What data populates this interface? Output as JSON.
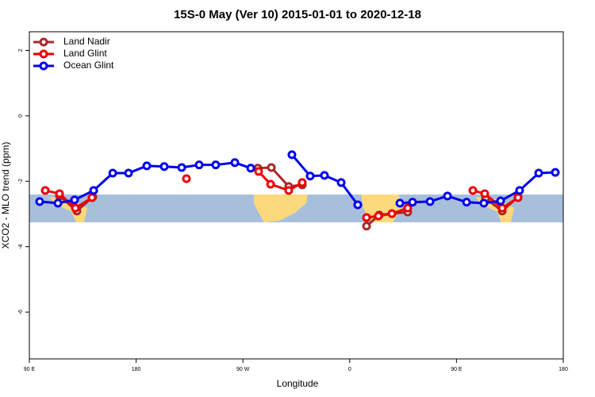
{
  "chart_data": {
    "type": "line",
    "title": "15S-0 May (Ver 10)   2015-01-01 to 2020-12-18",
    "xlabel": "Longitude",
    "ylabel": "XCO2 - MLO trend (ppm)",
    "xlim": [
      90,
      540
    ],
    "ylim": [
      -7.43,
      2.57
    ],
    "xticks": [
      {
        "value": 90,
        "label": "90 E"
      },
      180,
      {
        "value": 270,
        "label": "90 W"
      },
      {
        "value": 360,
        "label": "0"
      },
      {
        "value": 450,
        "label": "90 E"
      },
      {
        "value": 540,
        "label": "180"
      }
    ],
    "yticks": [
      2,
      0,
      -2,
      -4,
      -6
    ],
    "legend": "top-left",
    "series": [
      {
        "name": "Land Nadir",
        "color": "#a52a2a",
        "x": [
          115.4,
          130.1,
          143.5,
          null,
          282.6,
          294,
          308.6,
          320,
          null,
          374.2,
          384.9,
          395.6,
          408.9,
          null,
          474.5,
          488.5,
          501.9
        ],
        "values": [
          -2.45,
          -2.91,
          -2.48,
          null,
          -1.6,
          -1.58,
          -2.16,
          -2.11,
          null,
          -3.37,
          -3.03,
          -2.99,
          -2.94,
          null,
          -2.52,
          -2.91,
          -2.48
        ]
      },
      {
        "name": "Land Glint",
        "color": "#ee0000",
        "x": [
          103.4,
          115.4,
          128.8,
          142.8,
          null,
          222.4,
          null,
          283.2,
          293.3,
          308.6,
          320,
          null,
          374.2,
          384.2,
          395.6,
          408.9,
          null,
          463.8,
          473.8,
          488.5,
          501.9
        ],
        "values": [
          -2.28,
          -2.38,
          -2.82,
          -2.5,
          null,
          -1.92,
          null,
          -1.7,
          -2.09,
          -2.28,
          -2.04,
          null,
          -3.11,
          -3.06,
          -2.99,
          -2.82,
          null,
          -2.28,
          -2.38,
          -2.82,
          -2.5
        ]
      },
      {
        "name": "Ocean Glint",
        "color": "#0000ee",
        "x": [
          98.7,
          114.1,
          128.1,
          144.2,
          160.3,
          173.6,
          189,
          203.7,
          218.4,
          233.1,
          247.1,
          263.2,
          276.6,
          null,
          311.3,
          326.7,
          338.7,
          352.8,
          366.8,
          null,
          402.3,
          413,
          427.7,
          442.4,
          458.5,
          473.1,
          487.2,
          503.2,
          519.3,
          533.3
        ],
        "values": [
          -2.62,
          -2.67,
          -2.57,
          -2.28,
          -1.75,
          -1.75,
          -1.53,
          -1.55,
          -1.58,
          -1.5,
          -1.5,
          -1.43,
          -1.6,
          null,
          -1.19,
          -1.84,
          -1.82,
          -2.04,
          -2.72,
          null,
          -2.67,
          -2.64,
          -2.62,
          -2.45,
          -2.64,
          -2.67,
          -2.6,
          -2.28,
          -1.75,
          -1.73
        ]
      }
    ]
  }
}
